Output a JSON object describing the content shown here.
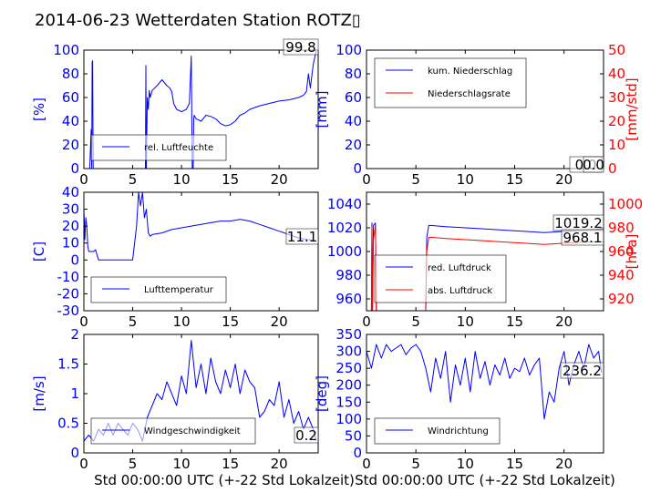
{
  "figure": {
    "title": "2014-06-23 Wetterdaten Station ROTZ▯",
    "xlabel": "Std 00:00:00 UTC (+-22 Std Lokalzeit)"
  },
  "colors": {
    "blue": "#0000ff",
    "red": "#ff0000",
    "lightblue": "#7f7fff"
  },
  "chart_data": [
    {
      "type": "line",
      "panel": "humidity",
      "ylabel": "[%]",
      "xlim": [
        0,
        24
      ],
      "ylim": [
        0,
        100
      ],
      "xticks": [
        0,
        5,
        10,
        15,
        20
      ],
      "yticks": [
        0,
        20,
        40,
        60,
        80,
        100
      ],
      "legend": {
        "placement": "lower-left",
        "entries": [
          "rel. Luftfeuchte"
        ]
      },
      "annotation": "99.8",
      "series": [
        {
          "name": "rel. Luftfeuchte",
          "color": "#0000ff",
          "x": [
            0,
            0.3,
            0.6,
            0.75,
            0.8,
            0.85,
            0.9,
            0.95,
            1.0,
            2,
            3,
            4,
            5,
            6,
            6.3,
            6.35,
            6.4,
            6.5,
            6.6,
            6.7,
            6.8,
            7,
            7.5,
            8,
            8.5,
            8.8,
            9.0,
            9.2,
            9.5,
            10,
            10.5,
            10.8,
            11,
            11.1,
            11.2,
            11.25,
            11.3,
            11.5,
            12,
            12.5,
            13,
            13.5,
            14,
            14.5,
            15,
            15.5,
            16,
            16.5,
            17,
            18,
            19,
            20,
            21,
            22,
            22.5,
            22.8,
            23,
            23.2,
            23.5,
            23.8
          ],
          "y": [
            0,
            0,
            0,
            33,
            0,
            90,
            91,
            0,
            0,
            0,
            0,
            0,
            0,
            0,
            0,
            87,
            0,
            60,
            50,
            66,
            60,
            66,
            70,
            75,
            70,
            68,
            65,
            55,
            50,
            48,
            50,
            55,
            95,
            0,
            0,
            42,
            45,
            42,
            40,
            45,
            44,
            42,
            38,
            36,
            37,
            40,
            45,
            47,
            50,
            53,
            55,
            57,
            58,
            60,
            62,
            65,
            80,
            68,
            88,
            99.8
          ]
        }
      ]
    },
    {
      "type": "line",
      "panel": "precipitation",
      "ylabel": "[mm]",
      "y2label": "[mm/std]",
      "xlim": [
        0,
        24
      ],
      "ylim": [
        0,
        100
      ],
      "y2lim": [
        0,
        50
      ],
      "xticks": [
        0,
        5,
        10,
        15,
        20
      ],
      "yticks": [
        0,
        20,
        40,
        60,
        80,
        100
      ],
      "y2ticks": [
        0,
        10,
        20,
        30,
        40,
        50
      ],
      "legend": {
        "placement": "upper-left",
        "entries": [
          "kum. Niederschlag",
          "Niederschlagsrate"
        ]
      },
      "annotation": "0.0",
      "annotation2": "0.0",
      "series": [
        {
          "name": "kum. Niederschlag",
          "color": "#0000ff",
          "axis": "left",
          "x": [
            0,
            24
          ],
          "y": [
            0,
            0
          ]
        },
        {
          "name": "Niederschlagsrate",
          "color": "#ff0000",
          "axis": "right",
          "x": [
            0,
            24
          ],
          "y": [
            0,
            0
          ]
        }
      ]
    },
    {
      "type": "line",
      "panel": "temperature",
      "ylabel": "[C]",
      "xlim": [
        0,
        24
      ],
      "ylim": [
        -30,
        40
      ],
      "xticks": [
        0,
        5,
        10,
        15,
        20
      ],
      "yticks": [
        -30,
        -20,
        -10,
        0,
        10,
        20,
        30,
        40
      ],
      "legend": {
        "placement": "lower-left",
        "entries": [
          "Lufttemperatur"
        ]
      },
      "annotation": "11.1",
      "series": [
        {
          "name": "Lufttemperatur",
          "color": "#0000ff",
          "x": [
            0,
            0.1,
            0.2,
            0.3,
            0.4,
            0.5,
            0.7,
            1.0,
            1.2,
            1.5,
            2,
            3,
            4,
            5,
            5.4,
            5.6,
            5.8,
            6.0,
            6.2,
            6.4,
            6.6,
            6.8,
            7,
            8,
            9,
            10,
            11,
            12,
            13,
            14,
            15,
            16,
            17,
            18,
            19,
            20,
            21,
            22,
            23,
            23.8
          ],
          "y": [
            30,
            12,
            25,
            20,
            8,
            5,
            5,
            5,
            6,
            0,
            0,
            0,
            0,
            0,
            20,
            40,
            32,
            40,
            25,
            30,
            16,
            14,
            15,
            16,
            18,
            19,
            20,
            21,
            22,
            23,
            23,
            24,
            23,
            21,
            19,
            17,
            15,
            13,
            12,
            11.1
          ]
        }
      ]
    },
    {
      "type": "line",
      "panel": "pressure",
      "ylabel": "",
      "y2label": "[hPa]",
      "xlim": [
        0,
        24
      ],
      "ylim": [
        950,
        1050
      ],
      "y2lim": [
        910,
        1010
      ],
      "xticks": [
        0,
        5,
        10,
        15,
        20
      ],
      "yticks": [
        960,
        980,
        1000,
        1020,
        1040
      ],
      "y2ticks": [
        920,
        940,
        960,
        980,
        1000
      ],
      "legend": {
        "placement": "lower-left",
        "entries": [
          "red. Luftdruck",
          "abs. Luftdruck"
        ]
      },
      "annotation": "1019.2",
      "annotation2": "968.1",
      "series": [
        {
          "name": "red. Luftdruck",
          "color": "#0000ff",
          "axis": "left",
          "x": [
            0,
            0.3,
            0.5,
            0.55,
            0.6,
            0.7,
            0.9,
            1.0,
            1.05,
            1.2,
            2,
            4,
            6.0,
            6.1,
            6.3,
            6.5,
            8,
            10,
            12,
            14,
            16,
            18,
            20,
            22,
            24
          ],
          "y": [
            950,
            950,
            950,
            1024,
            950,
            1022,
            1024,
            950,
            950,
            950,
            950,
            950,
            950,
            1012,
            1022,
            1022,
            1021,
            1020,
            1019,
            1018,
            1017,
            1016,
            1017,
            1018,
            1019.2
          ]
        },
        {
          "name": "abs. Luftdruck",
          "color": "#ff0000",
          "axis": "right",
          "x": [
            0,
            0.3,
            0.5,
            0.55,
            0.6,
            0.7,
            0.9,
            1.0,
            1.05,
            1.2,
            2,
            4,
            6.0,
            6.1,
            6.3,
            6.5,
            8,
            10,
            12,
            14,
            16,
            18,
            20,
            22,
            24
          ],
          "y": [
            910,
            910,
            910,
            981,
            910,
            970,
            982,
            910,
            910,
            910,
            910,
            910,
            910,
            960,
            972,
            972,
            971,
            970,
            969,
            968,
            967,
            966,
            967,
            968,
            968.1
          ]
        }
      ]
    },
    {
      "type": "line",
      "panel": "wind_speed",
      "ylabel": "[m/s]",
      "xlim": [
        0,
        24
      ],
      "ylim": [
        0,
        2.0
      ],
      "xticks": [
        0,
        5,
        10,
        15,
        20
      ],
      "yticks": [
        0.0,
        0.5,
        1.0,
        1.5,
        2.0
      ],
      "legend": {
        "placement": "lower-left",
        "entries": [
          "Windgeschwindigkeit"
        ]
      },
      "annotation": "0.2",
      "series": [
        {
          "name": "Windgeschwindigkeit",
          "color": "#0000ff",
          "x": [
            0,
            0.5,
            1,
            1.5,
            2,
            2.5,
            3,
            3.5,
            4,
            4.5,
            5,
            5.5,
            6,
            6.5,
            7,
            7.5,
            8,
            8.5,
            9,
            9.5,
            10,
            10.5,
            11,
            11.5,
            12,
            12.5,
            13,
            13.5,
            14,
            14.5,
            15,
            15.5,
            16,
            16.5,
            17,
            17.5,
            18,
            18.5,
            19,
            19.5,
            20,
            20.5,
            21,
            21.5,
            22,
            22.5,
            23,
            23.5,
            23.8
          ],
          "y": [
            0.2,
            0.3,
            0.2,
            0.4,
            0.3,
            0.5,
            0.3,
            0.5,
            0.4,
            0.3,
            0.5,
            0.4,
            0.2,
            0.6,
            0.8,
            1.0,
            0.9,
            1.2,
            1.0,
            0.8,
            1.3,
            1.0,
            1.9,
            1.1,
            1.5,
            1.0,
            1.6,
            1.2,
            1.0,
            1.4,
            1.1,
            1.5,
            1.0,
            1.4,
            1.2,
            1.1,
            0.6,
            0.7,
            0.9,
            0.8,
            1.2,
            0.6,
            0.9,
            0.5,
            0.7,
            0.4,
            0.6,
            0.4,
            0.2
          ]
        }
      ]
    },
    {
      "type": "line",
      "panel": "wind_direction",
      "ylabel": "[deg]",
      "xlim": [
        0,
        24
      ],
      "ylim": [
        0,
        350
      ],
      "xticks": [
        0,
        5,
        10,
        15,
        20
      ],
      "yticks": [
        0,
        50,
        100,
        150,
        200,
        250,
        300,
        350
      ],
      "legend": {
        "placement": "lower-left",
        "entries": [
          "Windrichtung"
        ]
      },
      "annotation": "236.2",
      "series": [
        {
          "name": "Windrichtung",
          "color": "#0000ff",
          "x": [
            0,
            0.5,
            1,
            1.5,
            2,
            2.5,
            3,
            3.5,
            4,
            4.5,
            5,
            5.5,
            6,
            6.5,
            7,
            7.5,
            8,
            8.5,
            9,
            9.5,
            10,
            10.5,
            11,
            11.5,
            12,
            12.5,
            13,
            13.5,
            14,
            14.5,
            15,
            15.5,
            16,
            16.5,
            17,
            17.5,
            18,
            18.5,
            19,
            19.5,
            20,
            20.5,
            21,
            21.5,
            22,
            22.5,
            23,
            23.5,
            23.8
          ],
          "y": [
            300,
            250,
            320,
            280,
            320,
            300,
            310,
            320,
            290,
            310,
            320,
            300,
            250,
            180,
            280,
            220,
            300,
            150,
            260,
            200,
            280,
            180,
            300,
            220,
            270,
            200,
            260,
            230,
            280,
            220,
            250,
            240,
            280,
            230,
            260,
            280,
            100,
            180,
            150,
            250,
            300,
            200,
            260,
            300,
            250,
            320,
            280,
            300,
            236.2
          ]
        }
      ]
    }
  ]
}
